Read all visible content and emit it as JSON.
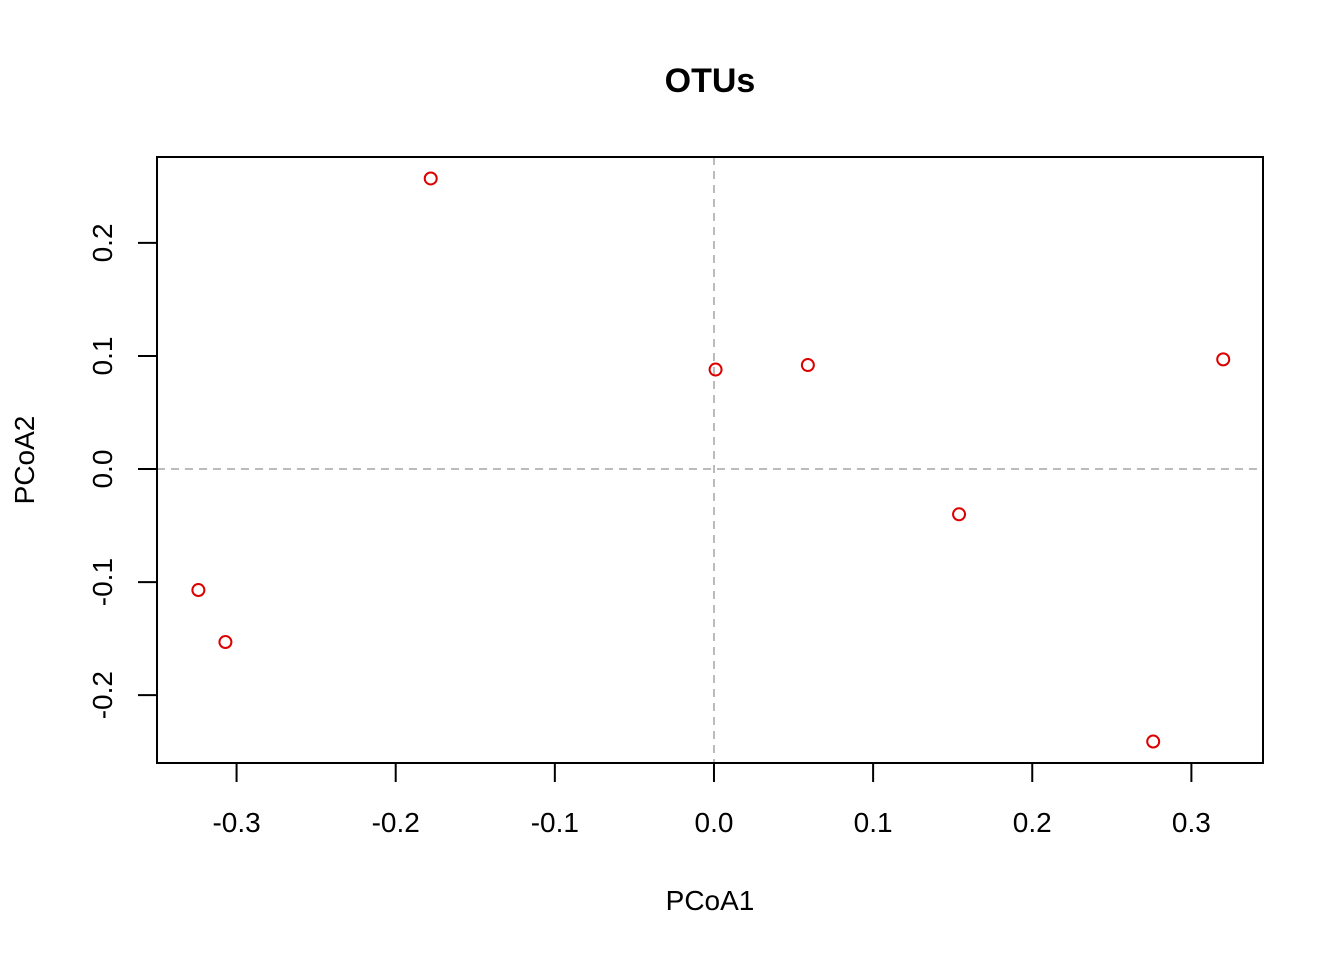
{
  "chart_data": {
    "type": "scatter",
    "title": "OTUs",
    "xlabel": "PCoA1",
    "ylabel": "PCoA2",
    "xlim": [
      -0.35,
      0.345
    ],
    "ylim": [
      -0.26,
      0.276
    ],
    "xticks": [
      -0.3,
      -0.2,
      -0.1,
      0.0,
      0.1,
      0.2,
      0.3
    ],
    "xtick_labels": [
      "-0.3",
      "-0.2",
      "-0.1",
      "0.0",
      "0.1",
      "0.2",
      "0.3"
    ],
    "yticks": [
      -0.2,
      -0.1,
      0.0,
      0.1,
      0.2
    ],
    "ytick_labels": [
      "-0.2",
      "-0.1",
      "0.0",
      "0.1",
      "0.2"
    ],
    "reference_lines": {
      "x": 0.0,
      "y": 0.0,
      "style": "dashed",
      "color": "#bbbbbb"
    },
    "grid": false,
    "point_color": "#dd0000",
    "marker": "open-circle",
    "points": [
      {
        "x": -0.178,
        "y": 0.257
      },
      {
        "x": 0.001,
        "y": 0.088
      },
      {
        "x": 0.059,
        "y": 0.092
      },
      {
        "x": 0.32,
        "y": 0.097
      },
      {
        "x": 0.154,
        "y": -0.04
      },
      {
        "x": -0.324,
        "y": -0.107
      },
      {
        "x": -0.307,
        "y": -0.153
      },
      {
        "x": 0.276,
        "y": -0.241
      }
    ]
  }
}
